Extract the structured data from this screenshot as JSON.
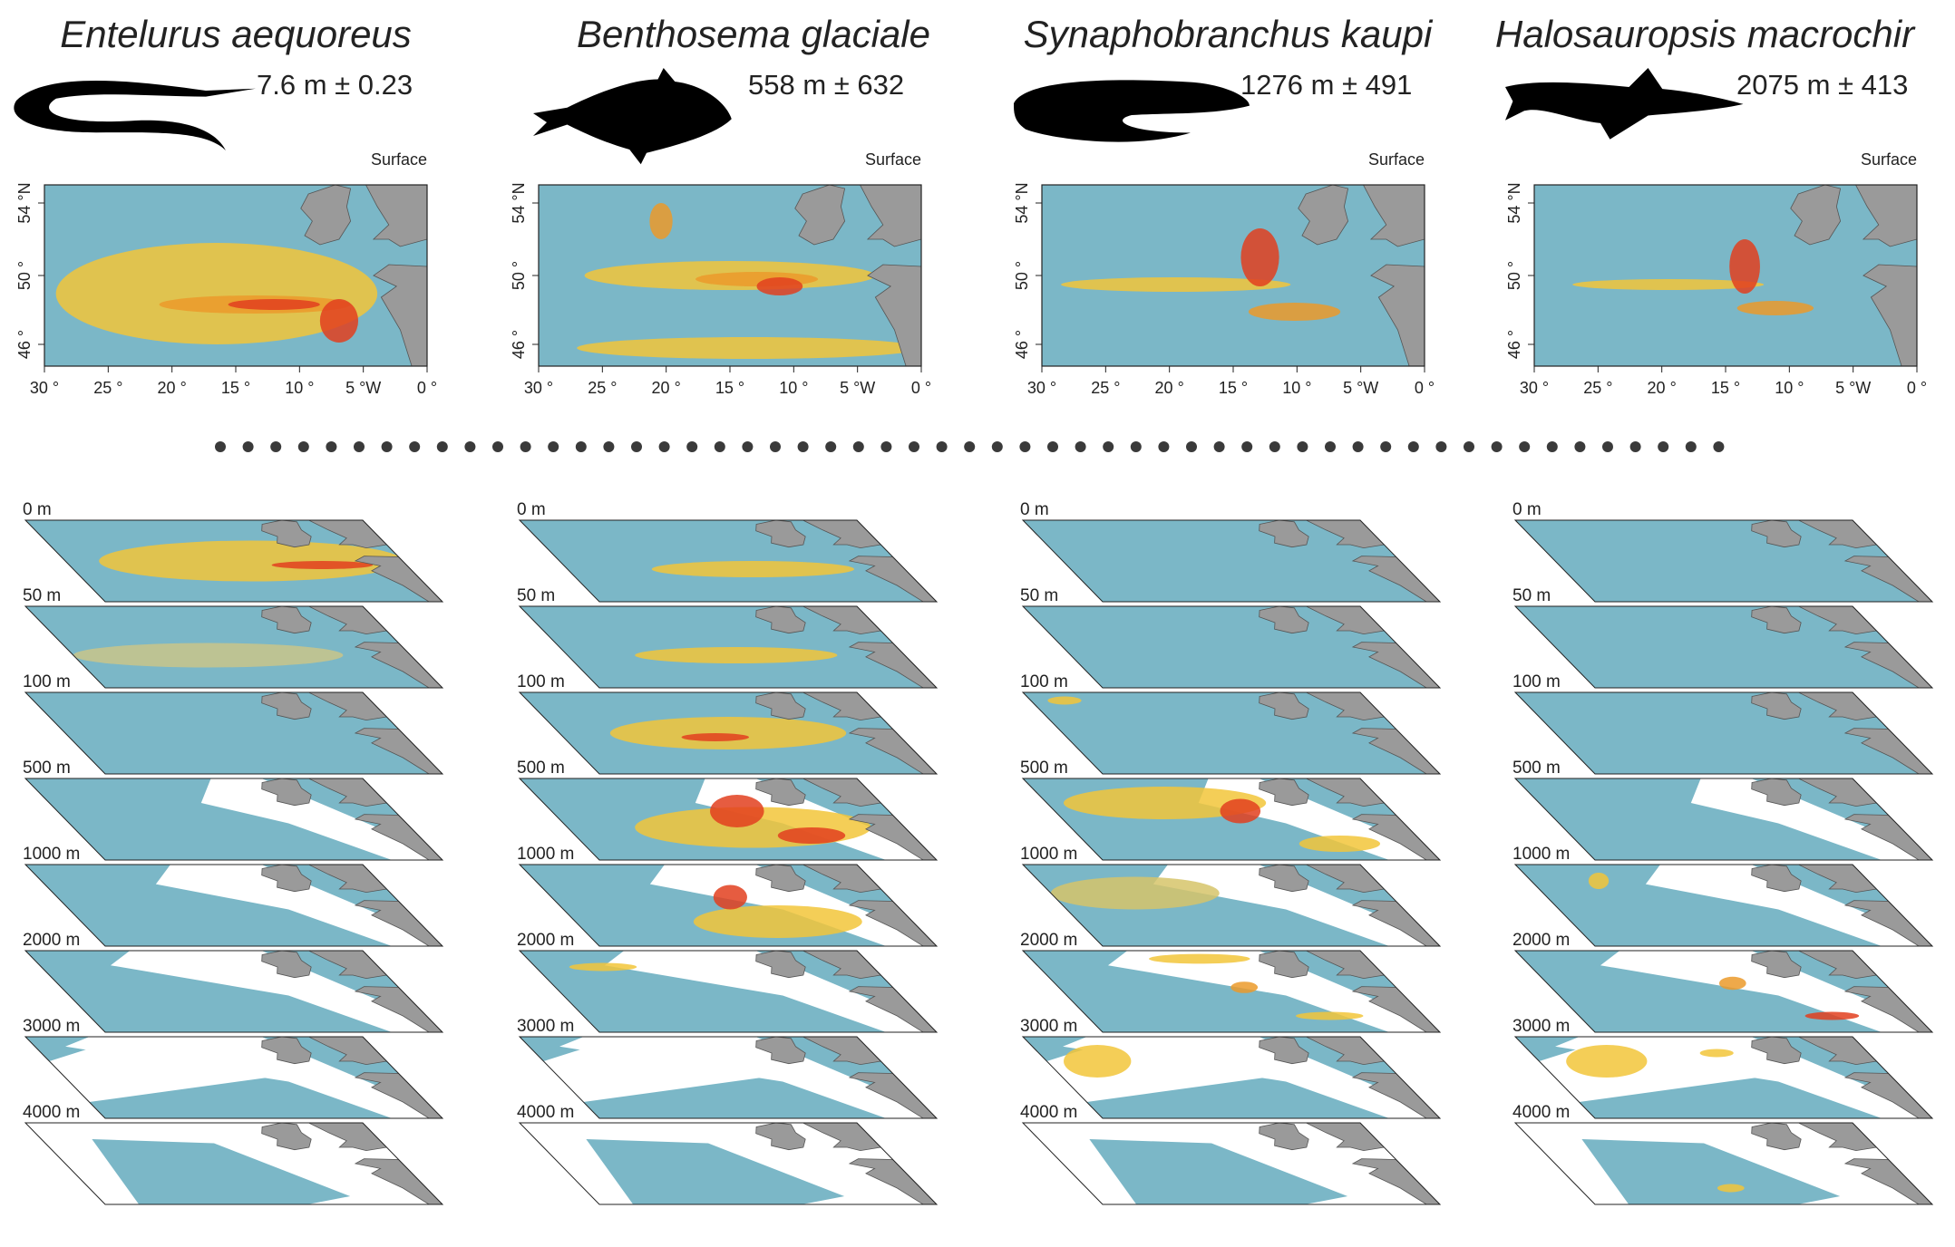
{
  "species": [
    {
      "name": "Entelurus aequoreus",
      "depth": "7.6 m ± 0.23"
    },
    {
      "name": "Benthosema glaciale",
      "depth": "558 m ± 632"
    },
    {
      "name": "Synaphobranchus kaupi",
      "depth": "1276 m ± 491"
    },
    {
      "name": "Halosauropsis macrochir",
      "depth": "2075 m ± 413"
    }
  ],
  "surface_label": "Surface",
  "lat_ticks": [
    "54 °N",
    "50 °",
    "46 °"
  ],
  "lon_ticks": [
    "30 °",
    "25 °",
    "20 °",
    "15 °",
    "10 °",
    "5 °W",
    "0 °"
  ],
  "depth_layers": [
    "0 m",
    "50 m",
    "100 m",
    "500 m",
    "1000 m",
    "2000 m",
    "3000 m",
    "4000 m"
  ]
}
